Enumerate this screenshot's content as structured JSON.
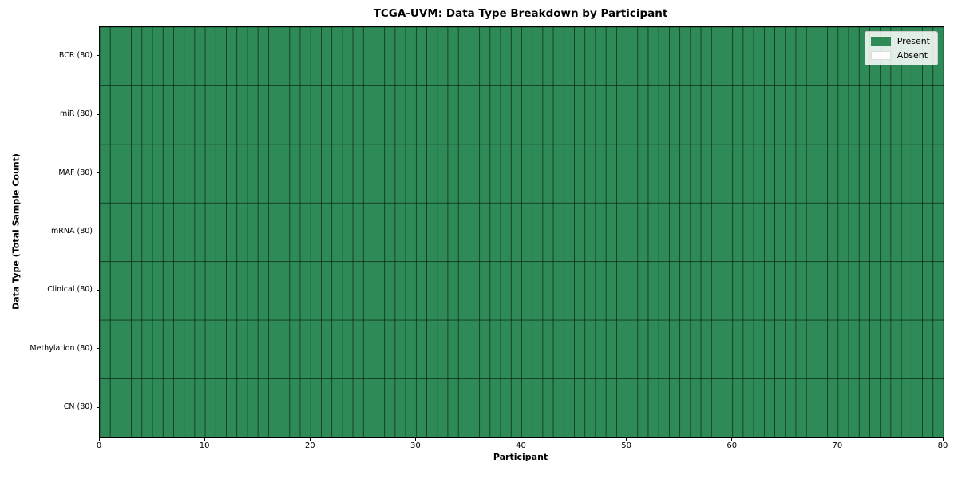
{
  "chart_data": {
    "type": "heatmap",
    "title": "TCGA-UVM: Data Type Breakdown by Participant",
    "xlabel": "Participant",
    "ylabel": "Data Type (Total Sample Count)",
    "x_ticks": [
      0,
      10,
      20,
      30,
      40,
      50,
      60,
      70,
      80
    ],
    "x_range": [
      0,
      80
    ],
    "n_participants": 80,
    "rows": [
      {
        "label": "BCR (80)",
        "present_count": 80,
        "absent_count": 0
      },
      {
        "label": "miR (80)",
        "present_count": 80,
        "absent_count": 0
      },
      {
        "label": "MAF (80)",
        "present_count": 80,
        "absent_count": 0
      },
      {
        "label": "mRNA (80)",
        "present_count": 80,
        "absent_count": 0
      },
      {
        "label": "Clinical (80)",
        "present_count": 80,
        "absent_count": 0
      },
      {
        "label": "Methylation (80)",
        "present_count": 80,
        "absent_count": 0
      },
      {
        "label": "CN (80)",
        "present_count": 80,
        "absent_count": 0
      }
    ],
    "legend": [
      {
        "label": "Present",
        "color": "#2e8b57"
      },
      {
        "label": "Absent",
        "color": "#ffffff"
      }
    ],
    "colors": {
      "present": "#2e8b57",
      "absent": "#ffffff",
      "cell_border": "rgba(0,0,0,0.5)"
    },
    "legend_position": "top-right",
    "grid": true
  }
}
